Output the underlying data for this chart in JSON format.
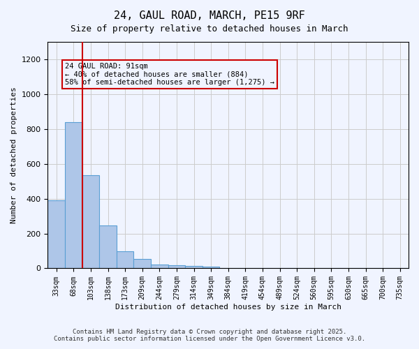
{
  "title1": "24, GAUL ROAD, MARCH, PE15 9RF",
  "title2": "Size of property relative to detached houses in March",
  "xlabel": "Distribution of detached houses by size in March",
  "ylabel": "Number of detached properties",
  "categories": [
    "33sqm",
    "68sqm",
    "103sqm",
    "138sqm",
    "173sqm",
    "209sqm",
    "244sqm",
    "279sqm",
    "314sqm",
    "349sqm",
    "384sqm",
    "419sqm",
    "454sqm",
    "489sqm",
    "524sqm",
    "560sqm",
    "595sqm",
    "630sqm",
    "665sqm",
    "700sqm",
    "735sqm"
  ],
  "values": [
    390,
    840,
    535,
    248,
    100,
    52,
    22,
    18,
    13,
    8,
    0,
    0,
    0,
    0,
    0,
    0,
    0,
    0,
    0,
    0,
    0
  ],
  "bar_color": "#aec6e8",
  "bar_edge_color": "#5a9fd4",
  "vline_x": 1.5,
  "vline_color": "#cc0000",
  "annotation_text": "24 GAUL ROAD: 91sqm\n← 40% of detached houses are smaller (884)\n58% of semi-detached houses are larger (1,275) →",
  "annotation_box_color": "#cc0000",
  "ylim": [
    0,
    1300
  ],
  "yticks": [
    0,
    200,
    400,
    600,
    800,
    1000,
    1200
  ],
  "footer1": "Contains HM Land Registry data © Crown copyright and database right 2025.",
  "footer2": "Contains public sector information licensed under the Open Government Licence v3.0.",
  "bg_color": "#f0f4ff",
  "grid_color": "#cccccc"
}
